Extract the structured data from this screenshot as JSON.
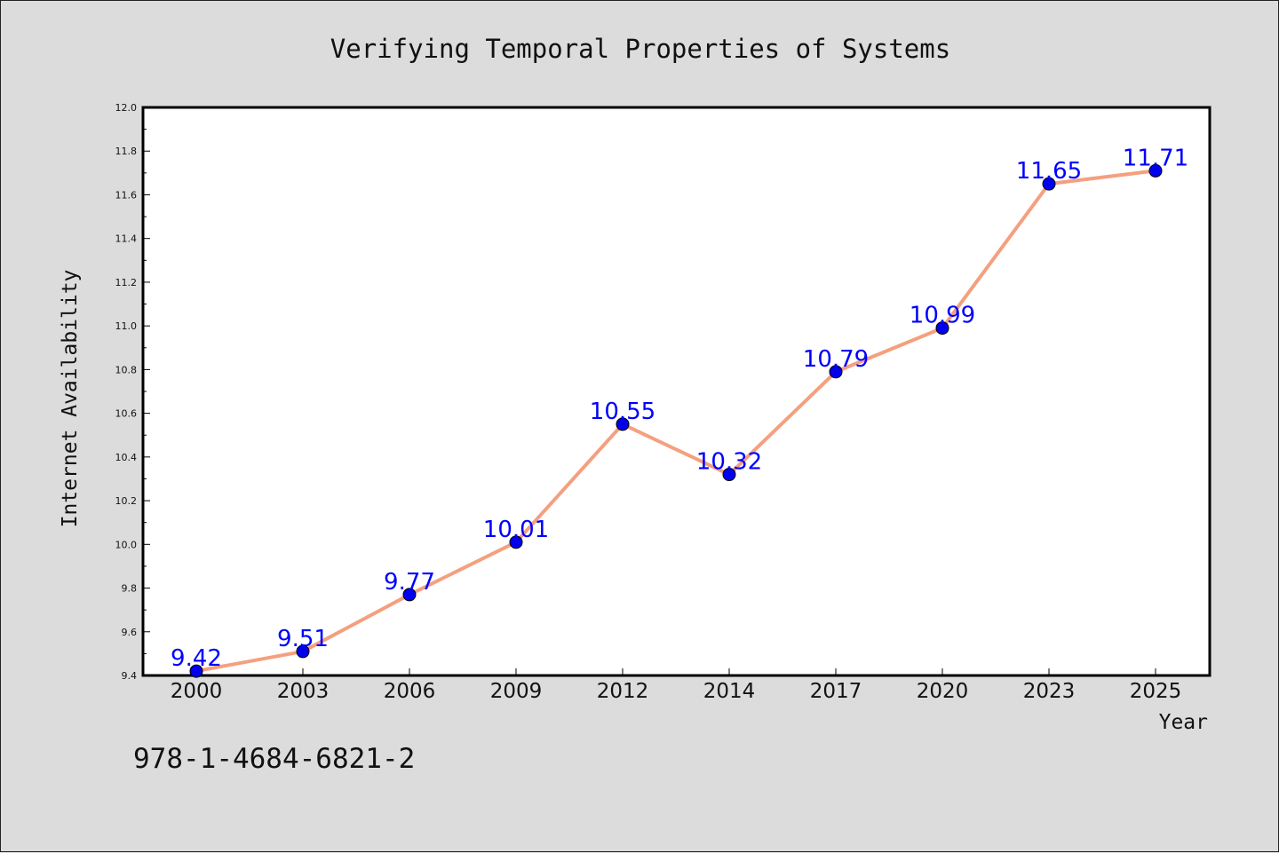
{
  "chart_data": {
    "type": "line",
    "title": "Verifying Temporal Properties of Systems",
    "xlabel": "Year",
    "ylabel": "Internet Availability",
    "categories": [
      "2000",
      "2003",
      "2006",
      "2009",
      "2012",
      "2014",
      "2017",
      "2020",
      "2023",
      "2025"
    ],
    "series": [
      {
        "values": [
          9.42,
          9.51,
          9.77,
          10.01,
          10.55,
          10.32,
          10.79,
          10.99,
          11.65,
          11.71
        ],
        "data_labels": [
          "9.42",
          "9.51",
          "9.77",
          "10.01",
          "10.55",
          "10.32",
          "10.79",
          "10.99",
          "11.65",
          "11.71"
        ],
        "line_color": "#f4a07f",
        "marker_color": "#0000ee"
      }
    ],
    "ylim": [
      9.4,
      12.0
    ],
    "yticks": [
      "9.4",
      "9.6",
      "9.8",
      "10.0",
      "10.2",
      "10.4",
      "10.6",
      "10.8",
      "11.0",
      "11.2",
      "11.4",
      "11.6",
      "11.8",
      "12.0"
    ],
    "grid": false,
    "legend": "none"
  },
  "footer": {
    "isbn": "978-1-4684-6821-2"
  },
  "colors": {
    "background": "#dcdcdc",
    "plot_background": "#ffffff",
    "label": "#0000ff"
  }
}
